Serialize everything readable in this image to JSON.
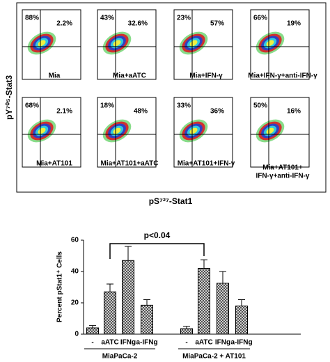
{
  "figure": {
    "y_axis_label": "pY⁷⁰⁵-Stat3",
    "x_axis_label": "pS⁷²⁷-Stat1",
    "panels": [
      {
        "upper_left": "88%",
        "upper_right": "2.2%",
        "label": [
          "Mia"
        ]
      },
      {
        "upper_left": "43%",
        "upper_right": "32.6%",
        "label": [
          "Mia+aATC"
        ]
      },
      {
        "upper_left": "23%",
        "upper_right": "57%",
        "label": [
          "Mia+IFN-γ"
        ]
      },
      {
        "upper_left": "66%",
        "upper_right": "19%",
        "label": [
          "Mia+IFN-γ+anti-IFN-γ"
        ]
      },
      {
        "upper_left": "68%",
        "upper_right": "2.1%",
        "label": [
          "Mia+AT101"
        ]
      },
      {
        "upper_left": "18%",
        "upper_right": "48%",
        "label": [
          "Mia+AT101+aATC"
        ]
      },
      {
        "upper_left": "33%",
        "upper_right": "36%",
        "label": [
          "Mia+AT101+IFN-γ"
        ]
      },
      {
        "upper_left": "50%",
        "upper_right": "16%",
        "label": [
          "Mia+AT101+",
          "IFN-γ+anti-IFN-γ"
        ]
      }
    ]
  },
  "chart_data": {
    "type": "bar",
    "ylabel": "Percent pStat1⁺ Cells",
    "categories": [
      "-",
      "aATC",
      "IFNg",
      "a-IFNg",
      "-",
      "aATC",
      "IFNg",
      "a-IFNg"
    ],
    "values": [
      4,
      27,
      47,
      18.5,
      3.5,
      42,
      32.5,
      18
    ],
    "errors": [
      1.5,
      5,
      9,
      3.5,
      1.5,
      5.5,
      7.5,
      4
    ],
    "groups": [
      "MiaPaCa-2",
      "MiaPaCa-2 + AT101"
    ],
    "annotation": "p<0.04",
    "color": "#444444",
    "ylim": [
      0,
      60
    ],
    "yticks": [
      0,
      20,
      40,
      60
    ]
  }
}
